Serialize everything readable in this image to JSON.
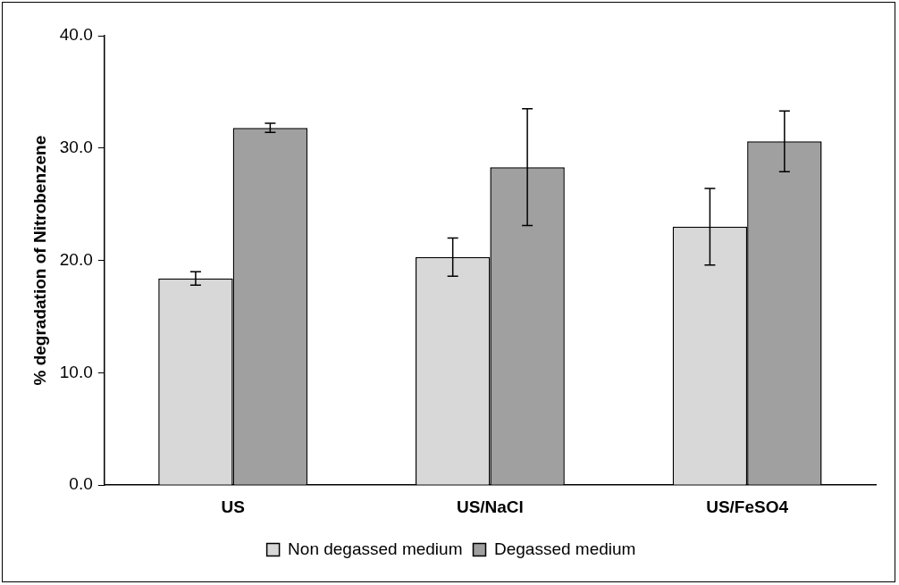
{
  "chart_data": {
    "type": "bar",
    "ylabel": "% degradation of Nitrobenzene",
    "categories": [
      "US",
      "US/NaCl",
      "US/FeSO4"
    ],
    "series": [
      {
        "name": "Non degassed medium",
        "color": "#d8d8d8",
        "values": [
          18.4,
          20.3,
          23.0
        ],
        "errors": [
          0.6,
          1.7,
          3.4
        ]
      },
      {
        "name": "Degassed medium",
        "color": "#a0a0a0",
        "values": [
          31.8,
          28.3,
          30.6
        ],
        "errors": [
          0.4,
          5.2,
          2.7
        ]
      }
    ],
    "ylim": [
      0,
      40
    ],
    "yticks": [
      {
        "value": 0,
        "label": "0.0"
      },
      {
        "value": 10,
        "label": "10.0"
      },
      {
        "value": 20,
        "label": "20.0"
      },
      {
        "value": 30,
        "label": "30.0"
      },
      {
        "value": 40,
        "label": "40.0"
      }
    ],
    "grid": false,
    "legend": "bottom"
  }
}
